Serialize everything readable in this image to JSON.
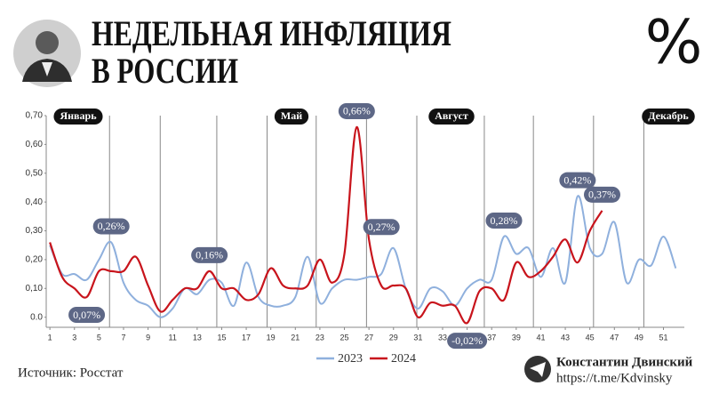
{
  "chart_data": {
    "type": "line",
    "title": [
      "НЕДЕЛЬНАЯ ИНФЛЯЦИЯ",
      "В РОССИИ"
    ],
    "icon": "%",
    "annotations": [
      "Январь",
      "Май",
      "Август",
      "Декабрь"
    ],
    "x": [
      1,
      2,
      3,
      4,
      5,
      6,
      7,
      8,
      9,
      10,
      11,
      12,
      13,
      14,
      15,
      16,
      17,
      18,
      19,
      20,
      21,
      22,
      23,
      24,
      25,
      26,
      27,
      28,
      29,
      30,
      31,
      32,
      33,
      34,
      35,
      36,
      37,
      38,
      39,
      40,
      41,
      42,
      43,
      44,
      45,
      46,
      47,
      48,
      49,
      50,
      51,
      52
    ],
    "xlim": [
      0.7,
      52.7
    ],
    "xticks": [
      1,
      3,
      5,
      7,
      9,
      11,
      13,
      15,
      17,
      19,
      21,
      23,
      25,
      27,
      29,
      31,
      33,
      35,
      37,
      39,
      41,
      43,
      45,
      47,
      49,
      51
    ],
    "ylim": [
      -0.035,
      0.7
    ],
    "yticks": [
      {
        "value": 0,
        "label": "0.0"
      },
      {
        "value": 0.1,
        "label": "0,10"
      },
      {
        "value": 0.2,
        "label": "0,20"
      },
      {
        "value": 0.3,
        "label": "0,30"
      },
      {
        "value": 0.4,
        "label": "0,40"
      },
      {
        "value": 0.5,
        "label": "0,50"
      },
      {
        "value": 0.6,
        "label": "0,60"
      },
      {
        "value": 0.7,
        "label": "0,70"
      }
    ],
    "series": [
      {
        "name": "2023",
        "color": "#8fb0dd",
        "values": [
          0.25,
          0.15,
          0.15,
          0.13,
          0.2,
          0.26,
          0.12,
          0.06,
          0.04,
          0.0,
          0.03,
          0.1,
          0.08,
          0.13,
          0.12,
          0.04,
          0.19,
          0.07,
          0.04,
          0.04,
          0.07,
          0.21,
          0.05,
          0.1,
          0.13,
          0.13,
          0.14,
          0.15,
          0.24,
          0.1,
          0.03,
          0.1,
          0.09,
          0.04,
          0.1,
          0.13,
          0.13,
          0.28,
          0.22,
          0.24,
          0.14,
          0.24,
          0.12,
          0.42,
          0.24,
          0.22,
          0.33,
          0.12,
          0.2,
          0.18,
          0.28,
          0.17
        ],
        "value_labels": [
          null,
          null,
          null,
          null,
          null,
          "0,26%",
          null,
          null,
          null,
          null,
          null,
          null,
          null,
          null,
          null,
          null,
          null,
          null,
          null,
          null,
          null,
          null,
          null,
          null,
          null,
          null,
          null,
          null,
          null,
          null,
          null,
          null,
          null,
          null,
          null,
          null,
          null,
          "0,28%",
          null,
          null,
          null,
          null,
          null,
          "0,42%",
          null,
          null,
          null,
          null,
          null,
          null,
          null,
          null
        ]
      },
      {
        "name": "2024",
        "color": "#c8141c",
        "values": [
          0.26,
          0.14,
          0.1,
          0.07,
          0.16,
          0.16,
          0.16,
          0.21,
          0.11,
          0.02,
          0.06,
          0.1,
          0.1,
          0.16,
          0.1,
          0.1,
          0.06,
          0.08,
          0.17,
          0.11,
          0.1,
          0.11,
          0.2,
          0.12,
          0.22,
          0.66,
          0.27,
          0.11,
          0.11,
          0.1,
          0.0,
          0.05,
          0.04,
          0.04,
          -0.02,
          0.09,
          0.1,
          0.06,
          0.19,
          0.14,
          0.16,
          0.21,
          0.27,
          0.19,
          0.3,
          0.37,
          null,
          null,
          null,
          null,
          null,
          null
        ],
        "value_labels": [
          null,
          null,
          null,
          "0,07%",
          null,
          null,
          null,
          null,
          null,
          null,
          null,
          null,
          null,
          "0,16%",
          null,
          null,
          null,
          null,
          null,
          null,
          null,
          null,
          null,
          null,
          null,
          "0,66%",
          "0,27%",
          null,
          null,
          null,
          null,
          null,
          null,
          null,
          "-0,02%",
          null,
          null,
          null,
          null,
          null,
          null,
          null,
          null,
          null,
          null,
          "0,37%",
          null,
          null,
          null,
          null,
          null,
          null
        ]
      }
    ],
    "source": "Источник: Росстат",
    "author": "Константин Двинский",
    "link": "https://t.me/Kdvinsky"
  }
}
